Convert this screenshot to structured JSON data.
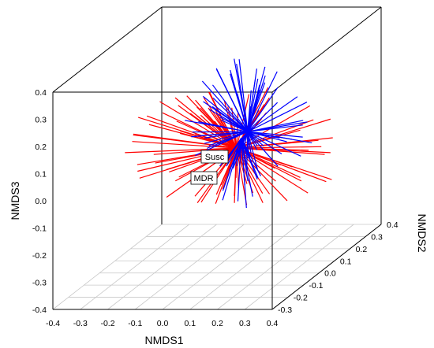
{
  "chart_data": {
    "type": "scatter",
    "subtype": "3d-spider",
    "title": "",
    "xlabel": "NMDS1",
    "ylabel": "NMDS2",
    "zlabel": "NMDS3",
    "xlim": [
      -0.4,
      0.4
    ],
    "ylim": [
      -0.3,
      0.4
    ],
    "zlim": [
      -0.4,
      0.4
    ],
    "x_ticks": [
      "-0.4",
      "-0.3",
      "-0.2",
      "-0.1",
      "0.0",
      "0.1",
      "0.2",
      "0.3",
      "0.4"
    ],
    "y_ticks": [
      "-0.3",
      "-0.2",
      "-0.1",
      "0.0",
      "0.1",
      "0.2",
      "0.3",
      "0.4"
    ],
    "z_ticks": [
      "-0.4",
      "-0.3",
      "-0.2",
      "-0.1",
      "0.0",
      "0.1",
      "0.2",
      "0.3",
      "0.4"
    ],
    "grid": "floor",
    "series": [
      {
        "name": "Susc",
        "color": "#0000ff",
        "centroid": {
          "x": 0.14,
          "y": 0.0,
          "z": 0.12
        }
      },
      {
        "name": "MDR",
        "color": "#ff0000",
        "centroid": {
          "x": 0.1,
          "y": 0.0,
          "z": 0.06
        }
      }
    ]
  }
}
